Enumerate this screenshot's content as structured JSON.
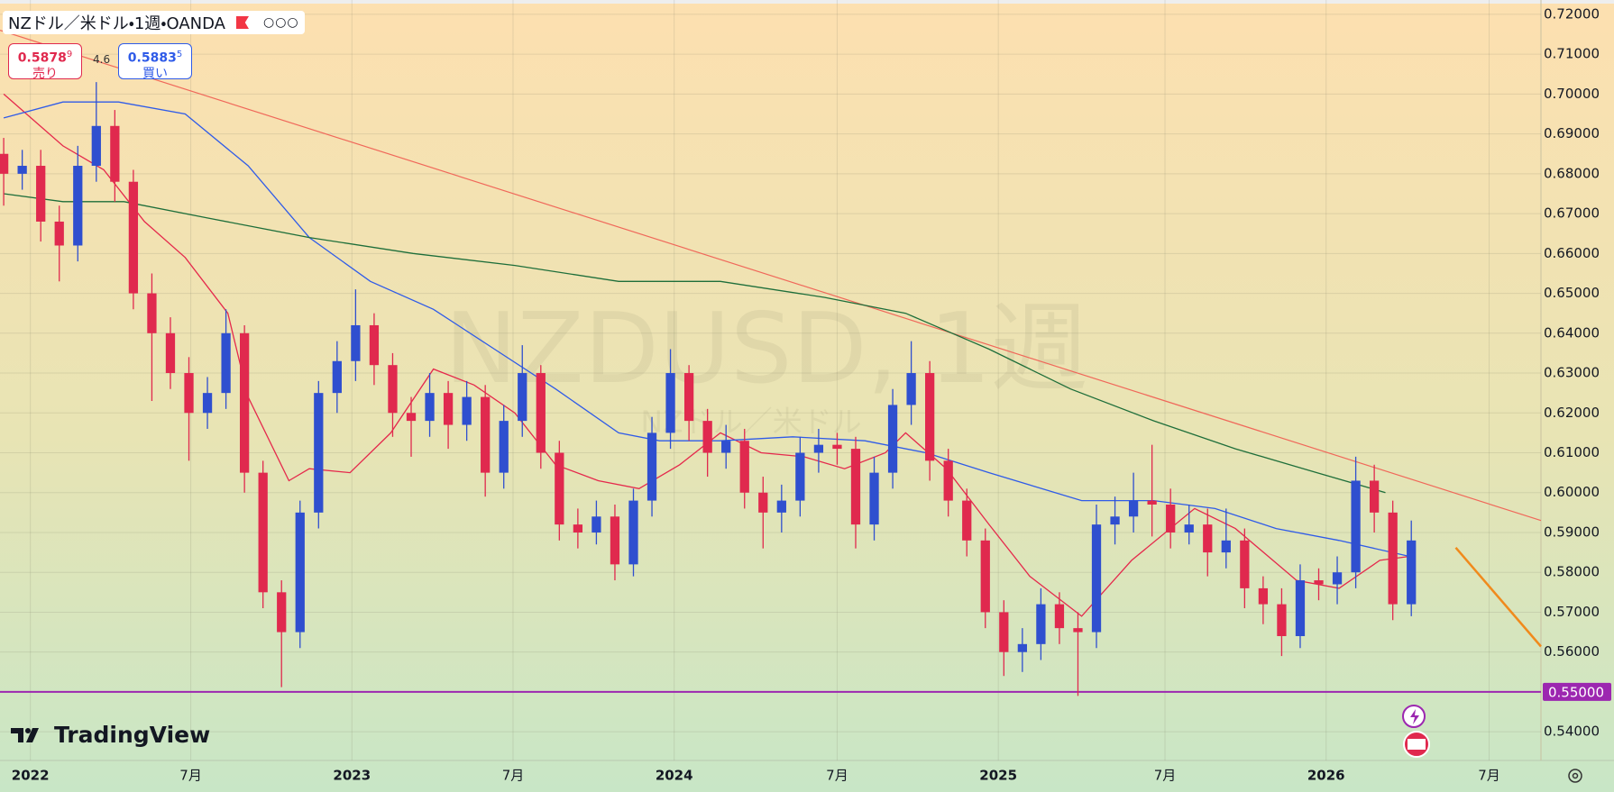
{
  "header": {
    "symbol": "NZドル／米ドル・1週・OANDA",
    "sell": {
      "price": "0.5878",
      "pip": "9",
      "label": "売り"
    },
    "spread": "4.6",
    "buy": {
      "price": "0.5883",
      "pip": "5",
      "label": "買い"
    }
  },
  "watermark": {
    "title": "NZDUSD, 1週",
    "subtitle": "NZドル／米ドル"
  },
  "logo": "TradingView",
  "chart_data": {
    "type": "candlestick",
    "up_color": "#2f4fcf",
    "down_color": "#e0294e",
    "open": [
      0.685,
      0.68,
      0.682,
      0.668,
      0.662,
      0.682,
      0.692,
      0.678,
      0.65,
      0.64,
      0.63,
      0.62,
      0.625,
      0.64,
      0.605,
      0.575,
      0.565,
      0.595,
      0.625,
      0.633,
      0.642,
      0.632,
      0.62,
      0.618,
      0.625,
      0.617,
      0.624,
      0.605,
      0.618,
      0.63,
      0.61,
      0.592,
      0.59,
      0.594,
      0.582,
      0.598,
      0.615,
      0.63,
      0.618,
      0.61,
      0.613,
      0.6,
      0.595,
      0.598,
      0.61,
      0.612,
      0.611,
      0.592,
      0.605,
      0.622,
      0.63,
      0.608,
      0.598,
      0.588,
      0.57,
      0.56,
      0.562,
      0.572,
      0.566,
      0.565,
      0.592,
      0.594,
      0.598,
      0.597,
      0.59,
      0.592,
      0.585,
      0.588,
      0.576,
      0.572,
      0.564,
      0.578,
      0.577,
      0.58,
      0.603,
      0.595,
      0.572
    ],
    "high": [
      0.689,
      0.686,
      0.686,
      0.672,
      0.687,
      0.703,
      0.696,
      0.681,
      0.655,
      0.644,
      0.634,
      0.629,
      0.646,
      0.642,
      0.608,
      0.578,
      0.598,
      0.628,
      0.638,
      0.651,
      0.645,
      0.635,
      0.624,
      0.63,
      0.628,
      0.628,
      0.627,
      0.622,
      0.637,
      0.632,
      0.613,
      0.596,
      0.598,
      0.597,
      0.601,
      0.619,
      0.636,
      0.632,
      0.621,
      0.617,
      0.616,
      0.604,
      0.602,
      0.614,
      0.616,
      0.615,
      0.614,
      0.609,
      0.626,
      0.638,
      0.633,
      0.611,
      0.601,
      0.591,
      0.573,
      0.566,
      0.576,
      0.575,
      0.57,
      0.597,
      0.599,
      0.605,
      0.612,
      0.601,
      0.597,
      0.596,
      0.596,
      0.591,
      0.579,
      0.576,
      0.582,
      0.581,
      0.584,
      0.609,
      0.607,
      0.598,
      0.593
    ],
    "low": [
      0.672,
      0.676,
      0.663,
      0.653,
      0.658,
      0.678,
      0.673,
      0.646,
      0.623,
      0.626,
      0.608,
      0.616,
      0.621,
      0.6,
      0.571,
      0.5512,
      0.561,
      0.591,
      0.62,
      0.628,
      0.627,
      0.614,
      0.609,
      0.614,
      0.611,
      0.613,
      0.599,
      0.601,
      0.614,
      0.606,
      0.588,
      0.586,
      0.587,
      0.578,
      0.579,
      0.594,
      0.611,
      0.613,
      0.604,
      0.606,
      0.596,
      0.586,
      0.59,
      0.594,
      0.605,
      0.607,
      0.586,
      0.588,
      0.601,
      0.617,
      0.603,
      0.594,
      0.584,
      0.566,
      0.554,
      0.555,
      0.558,
      0.562,
      0.549,
      0.561,
      0.587,
      0.59,
      0.589,
      0.586,
      0.587,
      0.579,
      0.581,
      0.571,
      0.567,
      0.559,
      0.561,
      0.573,
      0.572,
      0.576,
      0.59,
      0.568,
      0.569
    ],
    "close": [
      0.68,
      0.682,
      0.668,
      0.662,
      0.682,
      0.692,
      0.678,
      0.65,
      0.64,
      0.63,
      0.62,
      0.625,
      0.64,
      0.605,
      0.575,
      0.565,
      0.595,
      0.625,
      0.633,
      0.642,
      0.632,
      0.62,
      0.618,
      0.625,
      0.617,
      0.624,
      0.605,
      0.618,
      0.63,
      0.61,
      0.592,
      0.59,
      0.594,
      0.582,
      0.598,
      0.615,
      0.63,
      0.618,
      0.61,
      0.613,
      0.6,
      0.595,
      0.598,
      0.61,
      0.612,
      0.611,
      0.592,
      0.605,
      0.622,
      0.63,
      0.608,
      0.598,
      0.588,
      0.57,
      0.56,
      0.562,
      0.572,
      0.566,
      0.565,
      0.592,
      0.594,
      0.598,
      0.597,
      0.59,
      0.592,
      0.585,
      0.588,
      0.576,
      0.572,
      0.564,
      0.578,
      0.577,
      0.58,
      0.603,
      0.595,
      0.572,
      0.588
    ],
    "moving_averages": [
      {
        "color": "#e5294c",
        "x": [
          0,
          3.2,
          5.4,
          7.6,
          9.8,
          12.1,
          13.2,
          15.4,
          16.5,
          18.7,
          20.9,
          23.2,
          25.4,
          27.6,
          29.8,
          32.1,
          34.3,
          36.5,
          38.7,
          40.9,
          43.2,
          45.4,
          47.6,
          48.7,
          50.9,
          53.2,
          55.4,
          58.2,
          60.9,
          64.3,
          66.5,
          69.8,
          72.1,
          74.3,
          75.9
        ],
        "values": [
          0.7,
          0.687,
          0.681,
          0.668,
          0.659,
          0.645,
          0.624,
          0.603,
          0.606,
          0.605,
          0.615,
          0.631,
          0.627,
          0.62,
          0.607,
          0.603,
          0.601,
          0.607,
          0.615,
          0.61,
          0.609,
          0.606,
          0.61,
          0.615,
          0.606,
          0.592,
          0.579,
          0.569,
          0.583,
          0.596,
          0.591,
          0.578,
          0.576,
          0.583,
          0.584
        ]
      },
      {
        "color": "#2f5be8",
        "x": [
          0,
          3.2,
          6.2,
          9.8,
          13.2,
          16.5,
          19.8,
          23.2,
          26.5,
          29.8,
          33.2,
          35.4,
          38.7,
          42.6,
          46.5,
          49.8,
          53.2,
          58.2,
          62.1,
          65.4,
          68.7,
          72.1,
          75.9
        ],
        "values": [
          0.694,
          0.698,
          0.698,
          0.695,
          0.682,
          0.664,
          0.653,
          0.646,
          0.636,
          0.626,
          0.615,
          0.613,
          0.613,
          0.614,
          0.613,
          0.61,
          0.605,
          0.598,
          0.598,
          0.596,
          0.591,
          0.588,
          0.584
        ]
      },
      {
        "color": "#1e6e3a",
        "x": [
          0,
          3.2,
          6.5,
          10.9,
          16.5,
          22.1,
          27.6,
          33.2,
          38.7,
          44.3,
          48.7,
          53.2,
          57.6,
          62.1,
          66.5,
          70.9,
          74.6
        ],
        "values": [
          0.675,
          0.673,
          0.673,
          0.669,
          0.664,
          0.66,
          0.657,
          0.653,
          0.653,
          0.649,
          0.645,
          0.636,
          0.626,
          0.618,
          0.611,
          0.605,
          0.6
        ]
      }
    ],
    "trend_lines": [
      {
        "color": "#f0685a",
        "x": [
          -0.2,
          83
        ],
        "values": [
          0.716,
          0.593
        ]
      },
      {
        "color": "#f08a1c",
        "x": [
          78.4,
          83
        ],
        "values": [
          0.5862,
          0.5614
        ]
      }
    ],
    "horizontal_line": {
      "value": 0.55,
      "label": "0.55000",
      "color": "#9c27b0"
    },
    "xlim": [
      -0.2,
      83
    ],
    "ylim": [
      0.5328,
      0.7236
    ],
    "xticks": [
      {
        "value": 1.44,
        "label": "2022"
      },
      {
        "value": 10.1,
        "label": "7月"
      },
      {
        "value": 18.8,
        "label": "2023"
      },
      {
        "value": 27.5,
        "label": "7月"
      },
      {
        "value": 36.2,
        "label": "2024"
      },
      {
        "value": 45.0,
        "label": "7月"
      },
      {
        "value": 53.7,
        "label": "2025"
      },
      {
        "value": 62.7,
        "label": "7月"
      },
      {
        "value": 71.4,
        "label": "2026"
      },
      {
        "value": 80.2,
        "label": "7月"
      }
    ],
    "yticks": [
      {
        "value": 0.54,
        "label": "0.54000"
      },
      {
        "value": 0.56,
        "label": "0.56000"
      },
      {
        "value": 0.57,
        "label": "0.57000"
      },
      {
        "value": 0.58,
        "label": "0.58000"
      },
      {
        "value": 0.59,
        "label": "0.59000"
      },
      {
        "value": 0.6,
        "label": "0.60000"
      },
      {
        "value": 0.61,
        "label": "0.61000"
      },
      {
        "value": 0.62,
        "label": "0.62000"
      },
      {
        "value": 0.63,
        "label": "0.63000"
      },
      {
        "value": 0.64,
        "label": "0.64000"
      },
      {
        "value": 0.65,
        "label": "0.65000"
      },
      {
        "value": 0.66,
        "label": "0.66000"
      },
      {
        "value": 0.67,
        "label": "0.67000"
      },
      {
        "value": 0.68,
        "label": "0.68000"
      },
      {
        "value": 0.69,
        "label": "0.69000"
      },
      {
        "value": 0.7,
        "label": "0.70000"
      },
      {
        "value": 0.71,
        "label": "0.71000"
      },
      {
        "value": 0.72,
        "label": "0.72000"
      }
    ],
    "grid": true
  }
}
